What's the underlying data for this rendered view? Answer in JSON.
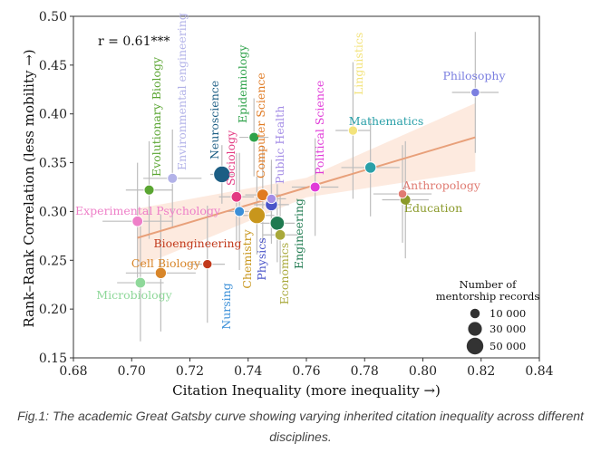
{
  "caption": "Fig.1: The academic Great Gatsby curve showing varying inherited citation inequality across different disciplines.",
  "chart_data": {
    "type": "scatter",
    "title": "",
    "xlabel": "Citation Inequality (more inequality →)",
    "ylabel": "Rank–Rank Correlation (less mobility →)",
    "xlim": [
      0.68,
      0.84
    ],
    "ylim": [
      0.15,
      0.5
    ],
    "xticks": [
      "0.68",
      "0.70",
      "0.72",
      "0.74",
      "0.76",
      "0.78",
      "0.80",
      "0.82",
      "0.84"
    ],
    "yticks": [
      "0.15",
      "0.20",
      "0.25",
      "0.30",
      "0.35",
      "0.40",
      "0.45",
      "0.50"
    ],
    "annotation": "r = 0.61***",
    "fit": {
      "x0": 0.702,
      "y0": 0.273,
      "x1": 0.818,
      "y1": 0.376
    },
    "legend": {
      "title": "Number of mentorship records",
      "entries": [
        {
          "label": "10 000",
          "size": 10000
        },
        {
          "label": "30 000",
          "size": 30000
        },
        {
          "label": "50 000",
          "size": 50000
        }
      ]
    },
    "points": [
      {
        "name": "Philosophy",
        "x": 0.818,
        "y": 0.422,
        "xerr": 0.008,
        "yerr": 0.062,
        "size": 6000,
        "color": "#7b7fe0"
      },
      {
        "name": "Linguistics",
        "x": 0.776,
        "y": 0.383,
        "xerr": 0.006,
        "yerr": 0.07,
        "size": 7000,
        "color": "#f3e37c"
      },
      {
        "name": "Mathematics",
        "x": 0.782,
        "y": 0.345,
        "xerr": 0.01,
        "yerr": 0.05,
        "size": 10000,
        "color": "#2aa0a8"
      },
      {
        "name": "Anthropology",
        "x": 0.793,
        "y": 0.318,
        "xerr": 0.01,
        "yerr": 0.05,
        "size": 6000,
        "color": "#e07b72"
      },
      {
        "name": "Education",
        "x": 0.794,
        "y": 0.312,
        "xerr": 0.008,
        "yerr": 0.06,
        "size": 9000,
        "color": "#8b9a2a"
      },
      {
        "name": "Political Science",
        "x": 0.763,
        "y": 0.325,
        "xerr": 0.008,
        "yerr": 0.05,
        "size": 8000,
        "color": "#e03ad8"
      },
      {
        "name": "Public Health",
        "x": 0.748,
        "y": 0.313,
        "xerr": 0.005,
        "yerr": 0.04,
        "size": 7000,
        "color": "#a58ee6"
      },
      {
        "name": "Computer Science",
        "x": 0.745,
        "y": 0.317,
        "xerr": 0.006,
        "yerr": 0.05,
        "size": 11000,
        "color": "#e07a22"
      },
      {
        "name": "Epidemiology",
        "x": 0.742,
        "y": 0.376,
        "xerr": 0.005,
        "yerr": 0.04,
        "size": 8000,
        "color": "#2ea24a"
      },
      {
        "name": "Neuroscience",
        "x": 0.731,
        "y": 0.338,
        "xerr": 0.004,
        "yerr": 0.03,
        "size": 22000,
        "color": "#1c5e84"
      },
      {
        "name": "Sociology",
        "x": 0.736,
        "y": 0.315,
        "xerr": 0.006,
        "yerr": 0.045,
        "size": 9000,
        "color": "#e33a82"
      },
      {
        "name": "Physics",
        "x": 0.748,
        "y": 0.307,
        "xerr": 0.006,
        "yerr": 0.04,
        "size": 12000,
        "color": "#4a54c8"
      },
      {
        "name": "Engineering",
        "x": 0.75,
        "y": 0.288,
        "xerr": 0.006,
        "yerr": 0.04,
        "size": 16000,
        "color": "#1f7a50"
      },
      {
        "name": "Economics",
        "x": 0.751,
        "y": 0.276,
        "xerr": 0.006,
        "yerr": 0.04,
        "size": 9000,
        "color": "#a8a83a"
      },
      {
        "name": "Chemistry",
        "x": 0.743,
        "y": 0.296,
        "xerr": 0.006,
        "yerr": 0.04,
        "size": 22000,
        "color": "#c8961c"
      },
      {
        "name": "Nursing",
        "x": 0.737,
        "y": 0.3,
        "xerr": 0.005,
        "yerr": 0.06,
        "size": 8000,
        "color": "#3b8fd8"
      },
      {
        "name": "Evolutionary Biology",
        "x": 0.706,
        "y": 0.322,
        "xerr": 0.008,
        "yerr": 0.05,
        "size": 8000,
        "color": "#5aa532"
      },
      {
        "name": "Environmental engineering",
        "x": 0.714,
        "y": 0.334,
        "xerr": 0.01,
        "yerr": 0.05,
        "size": 8000,
        "color": "#b2b2e8"
      },
      {
        "name": "Experimental Psychology",
        "x": 0.702,
        "y": 0.29,
        "xerr": 0.012,
        "yerr": 0.06,
        "size": 9000,
        "color": "#ee7fc8"
      },
      {
        "name": "Bioengineering",
        "x": 0.726,
        "y": 0.246,
        "xerr": 0.006,
        "yerr": 0.06,
        "size": 7000,
        "color": "#c23a1c"
      },
      {
        "name": "Cell Biology",
        "x": 0.71,
        "y": 0.237,
        "xerr": 0.012,
        "yerr": 0.06,
        "size": 10000,
        "color": "#d8862a"
      },
      {
        "name": "Microbiology",
        "x": 0.703,
        "y": 0.227,
        "xerr": 0.008,
        "yerr": 0.06,
        "size": 9000,
        "color": "#8fd89a"
      }
    ]
  }
}
